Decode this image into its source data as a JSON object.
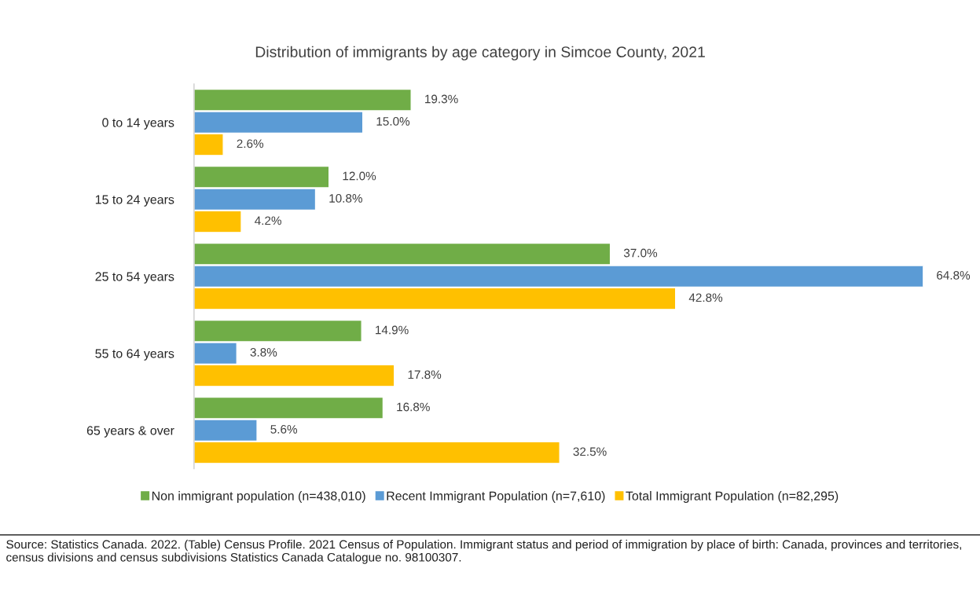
{
  "chart_data": {
    "type": "bar",
    "orientation": "horizontal",
    "title": "Distribution of immigrants by age category in Simcoe County, 2021",
    "categories": [
      "0 to 14 years",
      "15 to 24 years",
      "25 to 54 years",
      "55 to 64 years",
      "65 years & over"
    ],
    "series": [
      {
        "name": "Non immigrant population (n=438,010)",
        "color": "#70ad47",
        "values": [
          19.3,
          12.0,
          37.0,
          14.9,
          16.8
        ],
        "value_labels": [
          "19.3%",
          "12.0%",
          "37.0%",
          "14.9%",
          "16.8%"
        ]
      },
      {
        "name": "Recent Immigrant Population (n=7,610)",
        "color": "#5b9bd5",
        "values": [
          15.0,
          10.8,
          64.8,
          3.8,
          5.6
        ],
        "value_labels": [
          "15.0%",
          "10.8%",
          "64.8%",
          "3.8%",
          "5.6%"
        ]
      },
      {
        "name": "Total Immigrant Population (n=82,295)",
        "color": "#ffc000",
        "values": [
          2.6,
          4.2,
          42.8,
          17.8,
          32.5
        ],
        "value_labels": [
          "2.6%",
          "4.2%",
          "42.8%",
          "17.8%",
          "32.5%"
        ]
      }
    ],
    "legend": "bottom",
    "grid": false,
    "annotations": [
      "Source: Statistics Canada. 2022. (Table) Census Profile. 2021 Census of Population. Immigrant status and period of immigration by place of birth: Canada, provinces and territories, census divisions and census subdivisions Statistics Canada Catalogue no. 98100307."
    ]
  }
}
